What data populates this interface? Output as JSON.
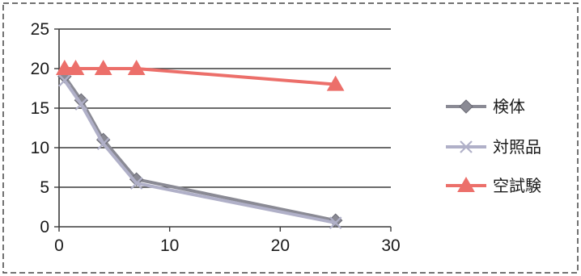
{
  "chart_data": {
    "type": "line",
    "x_ticks": [
      0,
      10,
      20,
      30
    ],
    "y_ticks": [
      0,
      5,
      10,
      15,
      20,
      25
    ],
    "xlim": [
      0,
      30
    ],
    "ylim": [
      0,
      25
    ],
    "grid": "horizontal",
    "legend_position": "right",
    "series": [
      {
        "name": "検体",
        "color": "#8a8a94",
        "marker": "diamond",
        "x": [
          0.5,
          2,
          4,
          7,
          25
        ],
        "y": [
          19,
          16,
          11,
          6,
          0.8
        ]
      },
      {
        "name": "対照品",
        "color": "#b0b0c8",
        "marker": "x",
        "x": [
          0.5,
          2,
          4,
          7,
          25
        ],
        "y": [
          18.5,
          15.5,
          10.5,
          5.5,
          0.5
        ]
      },
      {
        "name": "空試験",
        "color": "#ec6f6a",
        "marker": "triangle",
        "x": [
          0.5,
          1.5,
          4,
          7,
          25
        ],
        "y": [
          20,
          20,
          20,
          20,
          18
        ]
      }
    ]
  }
}
